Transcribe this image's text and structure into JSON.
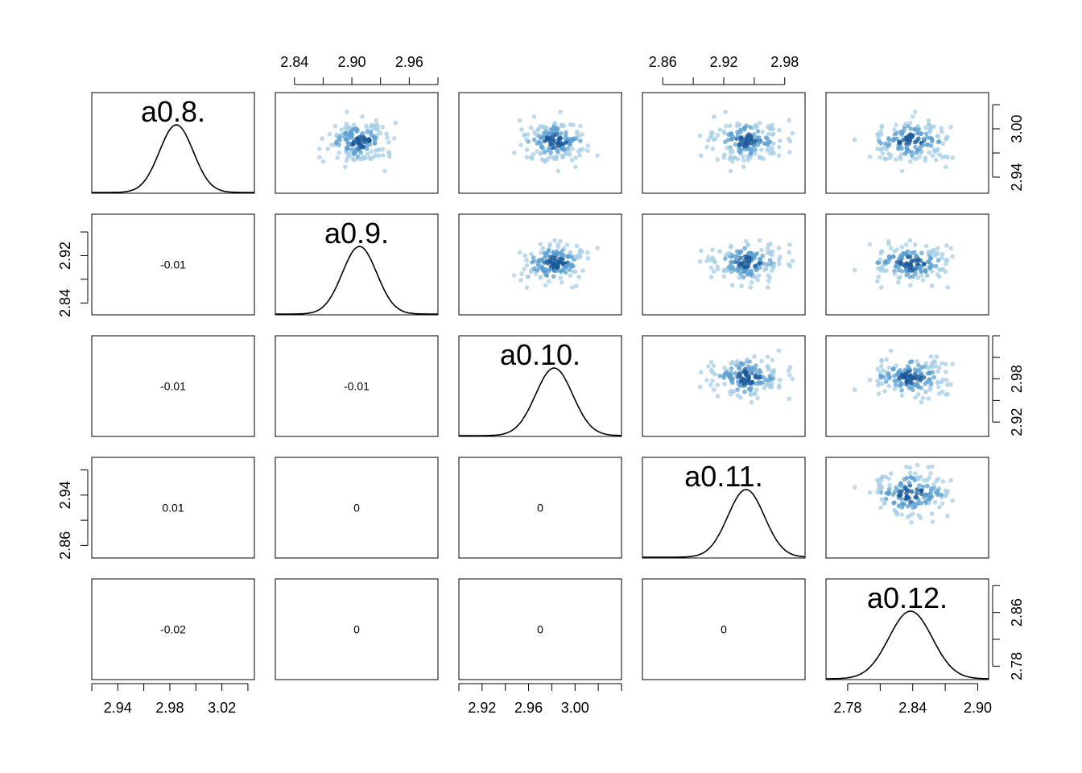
{
  "chart_data": {
    "type": "scatter",
    "subtype": "pairs-matrix",
    "variables": [
      "a0.8.",
      "a0.9.",
      "a0.10.",
      "a0.11.",
      "a0.12."
    ],
    "diagonal": "density",
    "lower_panel": "correlation",
    "upper_panel": "scatter",
    "grid": false,
    "colors": {
      "points_light": "#a6cde6",
      "points_mid": "#5a9fd0",
      "points_dark": "#1a5a9a",
      "line": "#000000",
      "frame": "#000000"
    },
    "variable_stats": [
      {
        "name": "a0.8.",
        "mean": 2.985,
        "sd": 0.013
      },
      {
        "name": "a0.9.",
        "mean": 2.908,
        "sd": 0.018
      },
      {
        "name": "a0.10.",
        "mean": 2.982,
        "sd": 0.016
      },
      {
        "name": "a0.11.",
        "mean": 2.942,
        "sd": 0.018
      },
      {
        "name": "a0.12.",
        "mean": 2.838,
        "sd": 0.02
      }
    ],
    "axis_ranges": [
      [
        2.92,
        3.045
      ],
      [
        2.82,
        2.99
      ],
      [
        2.9,
        3.04
      ],
      [
        2.84,
        3.0
      ],
      [
        2.76,
        2.91
      ]
    ],
    "correlations": [
      {
        "row": 1,
        "col": 0,
        "label": "-0.01"
      },
      {
        "row": 2,
        "col": 0,
        "label": "-0.01"
      },
      {
        "row": 2,
        "col": 1,
        "label": "-0.01"
      },
      {
        "row": 3,
        "col": 0,
        "label": "0.01"
      },
      {
        "row": 3,
        "col": 1,
        "label": "0"
      },
      {
        "row": 3,
        "col": 2,
        "label": "0"
      },
      {
        "row": 4,
        "col": 0,
        "label": "-0.02"
      },
      {
        "row": 4,
        "col": 1,
        "label": "0"
      },
      {
        "row": 4,
        "col": 2,
        "label": "0"
      },
      {
        "row": 4,
        "col": 3,
        "label": "0"
      }
    ],
    "axes": {
      "bottom": [
        {
          "col": 0,
          "labels": [
            "2.94",
            "2.98",
            "3.02"
          ]
        },
        {
          "col": 2,
          "labels": [
            "2.92",
            "2.96",
            "3.00"
          ]
        },
        {
          "col": 4,
          "labels": [
            "2.78",
            "2.84",
            "2.90"
          ]
        }
      ],
      "top": [
        {
          "col": 1,
          "labels": [
            "2.84",
            "2.90",
            "2.96"
          ]
        },
        {
          "col": 3,
          "labels": [
            "2.86",
            "2.92",
            "2.98"
          ]
        }
      ],
      "left": [
        {
          "row": 1,
          "labels": [
            "2.84",
            "2.92"
          ]
        },
        {
          "row": 3,
          "labels": [
            "2.86",
            "2.94"
          ]
        }
      ],
      "right": [
        {
          "row": 0,
          "labels": [
            "2.94",
            "3.00"
          ]
        },
        {
          "row": 2,
          "labels": [
            "2.92",
            "2.98"
          ]
        },
        {
          "row": 4,
          "labels": [
            "2.78",
            "2.86"
          ]
        }
      ]
    }
  }
}
